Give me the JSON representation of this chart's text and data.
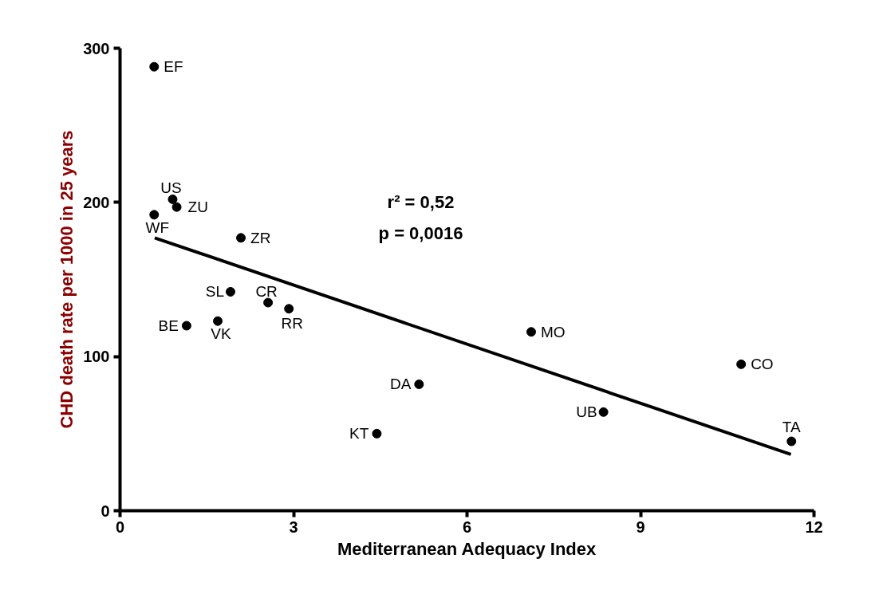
{
  "chart_data": {
    "type": "scatter",
    "xlabel": "Mediterranean Adequacy Index",
    "ylabel": "CHD death rate per 1000 in 25 years",
    "xlim": [
      0,
      12
    ],
    "ylim": [
      0,
      300
    ],
    "xticks": [
      0,
      3,
      6,
      9,
      12
    ],
    "yticks": [
      0,
      100,
      200,
      300
    ],
    "grid": false,
    "marker": "circle",
    "series": [
      {
        "color": "#000000",
        "x": [
          0.59,
          0.91,
          0.98,
          0.59,
          2.09,
          1.91,
          2.56,
          2.92,
          1.15,
          1.69,
          7.11,
          10.74,
          5.17,
          8.36,
          4.44,
          11.61
        ],
        "values": [
          288,
          202,
          197,
          192,
          177,
          142,
          135,
          131,
          120,
          123,
          116,
          95,
          82,
          64,
          50,
          45
        ]
      },
      {
        "type": "line",
        "marker": "none",
        "line_style": "solid",
        "color": "#000000",
        "x": [
          0.6,
          11.6
        ],
        "values": [
          177,
          36.5
        ]
      }
    ],
    "annotations": [
      {
        "text": "EF",
        "x": 0.59,
        "y": 288
      },
      {
        "text": "US",
        "x": 0.91,
        "y": 202
      },
      {
        "text": "ZU",
        "x": 0.98,
        "y": 197
      },
      {
        "text": "WF",
        "x": 0.59,
        "y": 192
      },
      {
        "text": "ZR",
        "x": 2.09,
        "y": 177
      },
      {
        "text": "SL",
        "x": 1.91,
        "y": 142
      },
      {
        "text": "CR",
        "x": 2.56,
        "y": 135
      },
      {
        "text": "RR",
        "x": 2.92,
        "y": 131
      },
      {
        "text": "BE",
        "x": 1.15,
        "y": 120
      },
      {
        "text": "VK",
        "x": 1.69,
        "y": 123
      },
      {
        "text": "MO",
        "x": 7.11,
        "y": 116
      },
      {
        "text": "CO",
        "x": 10.74,
        "y": 95
      },
      {
        "text": "DA",
        "x": 5.17,
        "y": 82
      },
      {
        "text": "UB",
        "x": 8.36,
        "y": 64
      },
      {
        "text": "KT",
        "x": 4.44,
        "y": 50
      },
      {
        "text": "TA",
        "x": 11.61,
        "y": 45
      },
      "r² = 0,52",
      "p = 0,0016"
    ]
  }
}
